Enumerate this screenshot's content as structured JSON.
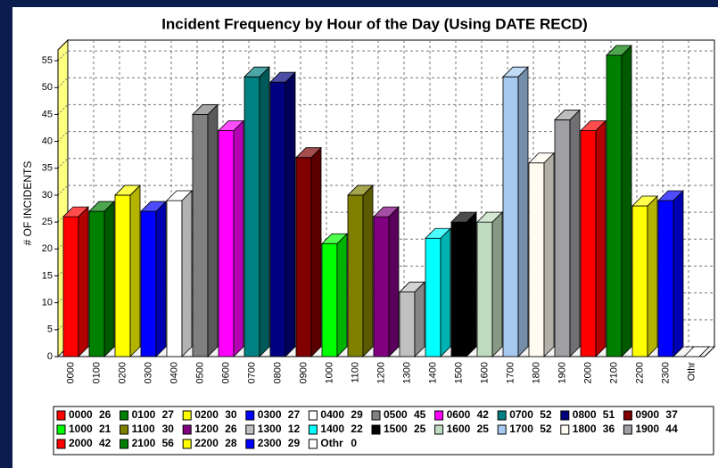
{
  "chart_data": {
    "type": "bar",
    "title": "Incident Frequency by Hour of the Day (Using DATE RECD)",
    "y_label": "# OF INCIDENTS",
    "categories": [
      "0000",
      "0100",
      "0200",
      "0300",
      "0400",
      "0500",
      "0600",
      "0700",
      "0800",
      "0900",
      "1000",
      "1100",
      "1200",
      "1300",
      "1400",
      "1500",
      "1600",
      "1700",
      "1800",
      "1900",
      "2000",
      "2100",
      "2200",
      "2300",
      "Othr"
    ],
    "values": [
      26,
      27,
      30,
      27,
      29,
      45,
      42,
      52,
      51,
      37,
      21,
      30,
      26,
      12,
      22,
      25,
      25,
      52,
      36,
      44,
      42,
      56,
      28,
      29,
      0
    ],
    "colors": [
      "#ff0000",
      "#008000",
      "#ffff00",
      "#0000ff",
      "#ffffff",
      "#808080",
      "#ff00ff",
      "#008080",
      "#000080",
      "#800000",
      "#00ff00",
      "#808000",
      "#800080",
      "#c0c0c0",
      "#00ffff",
      "#000000",
      "#c0dcc0",
      "#a6caf0",
      "#fffbf0",
      "#a0a0a4",
      "#ff0000",
      "#008000",
      "#ffff00",
      "#0000ff",
      "#ffffff"
    ],
    "ylim": [
      0,
      57
    ],
    "yticks": [
      0,
      5,
      10,
      15,
      20,
      25,
      30,
      35,
      40,
      45,
      50,
      55
    ],
    "grid": true,
    "legend": "bottom"
  }
}
